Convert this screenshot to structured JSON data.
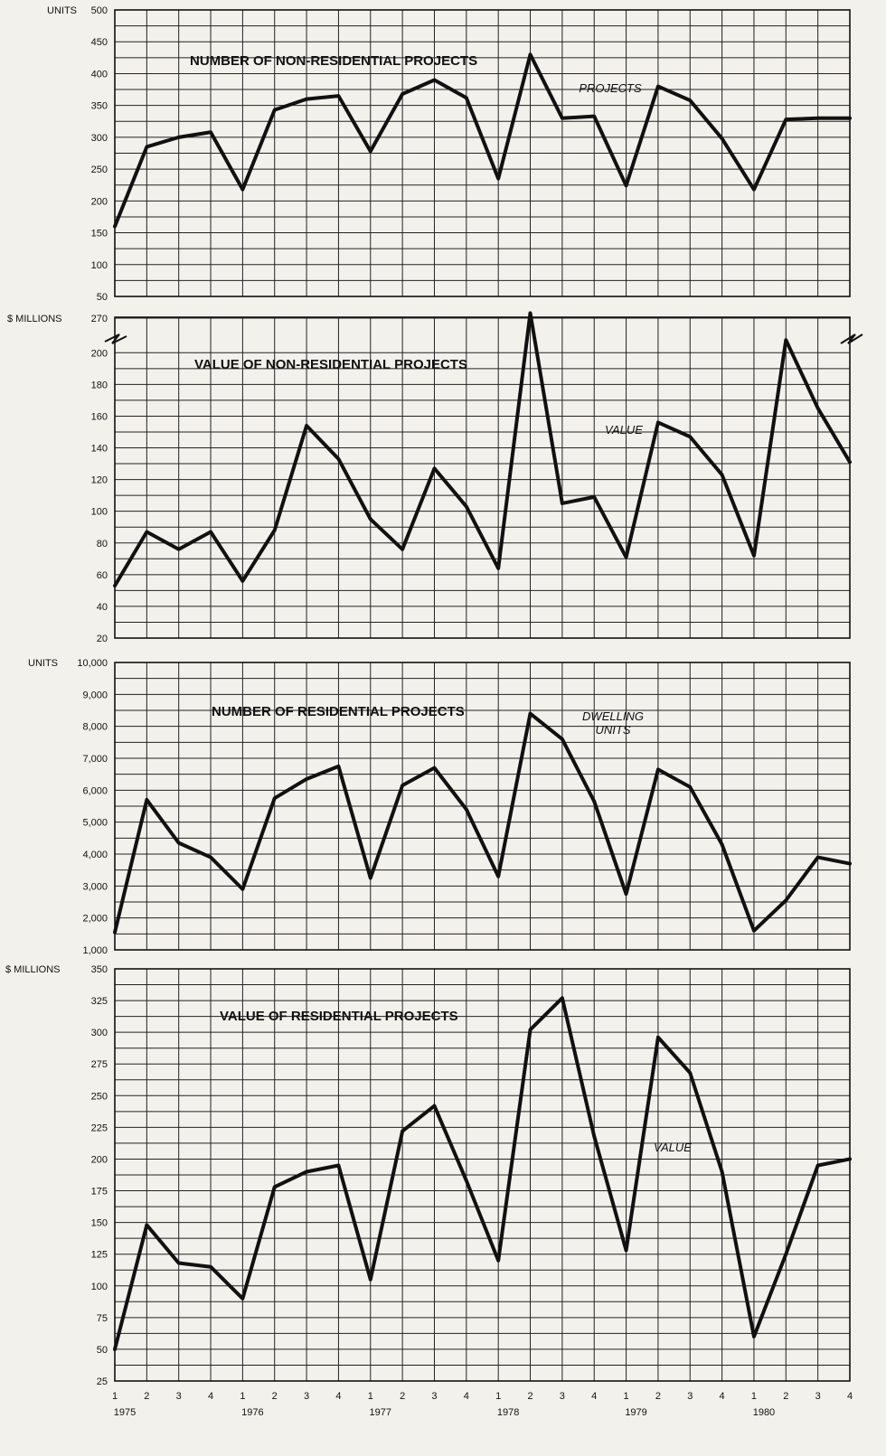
{
  "chart_data": [
    {
      "type": "line",
      "title": "NUMBER OF NON-RESIDENTIAL PROJECTS",
      "ylabel": "UNITS",
      "ylim": [
        50,
        500
      ],
      "yticks": [
        "500",
        "450",
        "400",
        "350",
        "300",
        "250",
        "200",
        "150",
        "100",
        "50"
      ],
      "series": [
        {
          "name": "PROJECTS",
          "values": [
            160,
            285,
            300,
            308,
            218,
            343,
            360,
            365,
            278,
            368,
            390,
            362,
            235,
            430,
            330,
            333,
            224,
            380,
            358,
            298,
            218,
            328,
            330,
            330
          ]
        }
      ],
      "grid": true
    },
    {
      "type": "line",
      "title": "VALUE OF NON-RESIDENTIAL PROJECTS",
      "ylabel": "$ MILLIONS",
      "ylim": [
        20,
        218
      ],
      "axis_break": true,
      "yticks": [
        "270",
        "200",
        "180",
        "160",
        "140",
        "120",
        "100",
        "80",
        "60",
        "40",
        "20"
      ],
      "series": [
        {
          "name": "VALUE",
          "values": [
            53,
            87,
            76,
            87,
            56,
            88,
            154,
            133,
            95,
            76,
            127,
            103,
            64,
            225,
            105,
            109,
            71,
            156,
            147,
            123,
            72,
            208,
            165,
            131
          ]
        }
      ],
      "grid": true
    },
    {
      "type": "line",
      "title": "NUMBER OF RESIDENTIAL PROJECTS",
      "ylabel": "UNITS",
      "ylim": [
        1000,
        10000
      ],
      "yticks": [
        "10,000",
        "9,000",
        "8,000",
        "7,000",
        "6,000",
        "5,000",
        "4,000",
        "3,000",
        "2,000",
        "1,000"
      ],
      "series": [
        {
          "name": "DWELLING UNITS",
          "values": [
            1550,
            5700,
            4350,
            3900,
            2900,
            5750,
            6350,
            6750,
            3250,
            6150,
            6700,
            5400,
            3300,
            8400,
            7600,
            5650,
            2750,
            6650,
            6100,
            4300,
            1600,
            2550,
            3900,
            3700
          ]
        }
      ],
      "grid": true
    },
    {
      "type": "line",
      "title": "VALUE OF RESIDENTIAL PROJECTS",
      "ylabel": "$ MILLIONS",
      "ylim": [
        25,
        350
      ],
      "yticks": [
        "350",
        "325",
        "300",
        "275",
        "250",
        "225",
        "200",
        "175",
        "150",
        "125",
        "100",
        "75",
        "50",
        "25"
      ],
      "series": [
        {
          "name": "VALUE",
          "values": [
            50,
            148,
            118,
            115,
            90,
            178,
            190,
            195,
            105,
            222,
            242,
            183,
            120,
            302,
            327,
            218,
            128,
            296,
            268,
            190,
            60,
            125,
            195,
            200
          ]
        }
      ],
      "grid": true
    }
  ],
  "x_axis": {
    "quarters": [
      "1",
      "2",
      "3",
      "4",
      "1",
      "2",
      "3",
      "4",
      "1",
      "2",
      "3",
      "4",
      "1",
      "2",
      "3",
      "4",
      "1",
      "2",
      "3",
      "4",
      "1",
      "2",
      "3",
      "4"
    ],
    "years": [
      "1975",
      "1976",
      "1977",
      "1978",
      "1979",
      "1980"
    ]
  }
}
